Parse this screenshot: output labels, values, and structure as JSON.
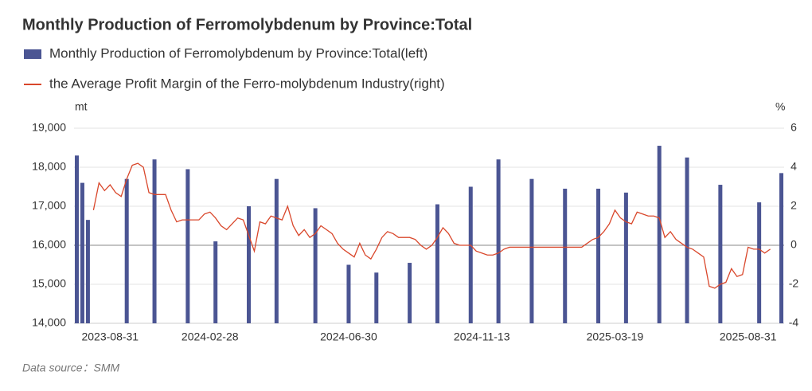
{
  "chart_data": {
    "type": "bar-line",
    "title": "Monthly Production of Ferromolybdenum by Province:Total",
    "ylabel": "mt",
    "y2label": "%",
    "source": "Data source：SMM",
    "legend": "top-left",
    "grid": true,
    "categories": [
      null,
      null,
      null,
      null,
      null,
      null,
      "2023-08-31",
      null,
      null,
      null,
      null,
      null,
      null,
      null,
      null,
      null,
      null,
      null,
      null,
      null,
      null,
      null,
      null,
      null,
      "2024-02-28",
      null,
      null,
      null,
      null,
      null,
      null,
      null,
      null,
      null,
      null,
      null,
      null,
      null,
      null,
      null,
      null,
      null,
      null,
      null,
      null,
      null,
      null,
      null,
      null,
      "2024-06-30",
      null,
      null,
      null,
      null,
      null,
      null,
      null,
      null,
      null,
      null,
      null,
      null,
      null,
      null,
      null,
      null,
      null,
      null,
      null,
      null,
      null,
      null,
      null,
      "2024-11-13",
      null,
      null,
      null,
      null,
      null,
      null,
      null,
      null,
      null,
      null,
      null,
      null,
      null,
      null,
      null,
      null,
      null,
      null,
      null,
      null,
      null,
      null,
      null,
      "2025-03-19",
      null,
      null,
      null,
      null,
      null,
      null,
      null,
      null,
      null,
      null,
      null,
      null,
      null,
      null,
      null,
      null,
      null,
      null,
      null,
      null,
      null,
      null,
      null,
      "2025-08-31",
      null,
      null,
      null,
      null,
      null,
      null
    ],
    "series": [
      {
        "name": "Monthly Production of Ferromolybdenum by Province:Total(left)",
        "kind": "bar",
        "color": "#4b5593",
        "values": [
          18300,
          17600,
          16650,
          null,
          null,
          null,
          null,
          null,
          null,
          17700,
          null,
          null,
          null,
          null,
          18200,
          null,
          null,
          null,
          null,
          null,
          17950,
          null,
          null,
          null,
          null,
          16100,
          null,
          null,
          null,
          null,
          null,
          17000,
          null,
          null,
          null,
          null,
          17700,
          null,
          null,
          null,
          null,
          null,
          null,
          16950,
          null,
          null,
          null,
          null,
          null,
          15500,
          null,
          null,
          null,
          null,
          15300,
          null,
          null,
          null,
          null,
          null,
          15550,
          null,
          null,
          null,
          null,
          17050,
          null,
          null,
          null,
          null,
          null,
          17500,
          null,
          null,
          null,
          null,
          18200,
          null,
          null,
          null,
          null,
          null,
          17700,
          null,
          null,
          null,
          null,
          null,
          17450,
          null,
          null,
          null,
          null,
          null,
          17450,
          null,
          null,
          null,
          null,
          17350,
          null,
          null,
          null,
          null,
          null,
          18550,
          null,
          null,
          null,
          null,
          18250,
          null,
          null,
          null,
          null,
          null,
          17550,
          null,
          null,
          null,
          null,
          null,
          null,
          17100,
          null,
          null,
          null,
          17850
        ]
      },
      {
        "name": "the Average Profit Margin of the Ferro-molybdenum Industry(right)",
        "kind": "line",
        "axis": "y2",
        "color": "#d9472b",
        "values": [
          null,
          null,
          null,
          1.8,
          3.2,
          2.8,
          3.1,
          2.7,
          2.5,
          3.4,
          4.1,
          4.2,
          4.0,
          2.7,
          2.6,
          2.6,
          2.6,
          1.8,
          1.2,
          1.3,
          1.3,
          1.3,
          1.3,
          1.6,
          1.7,
          1.4,
          1.0,
          0.8,
          1.1,
          1.4,
          1.3,
          0.5,
          -0.3,
          1.2,
          1.1,
          1.5,
          1.4,
          1.3,
          2.0,
          1.0,
          0.5,
          0.8,
          0.4,
          0.6,
          1.0,
          0.8,
          0.6,
          0.1,
          -0.2,
          -0.4,
          -0.6,
          0.1,
          -0.5,
          -0.7,
          -0.2,
          0.4,
          0.7,
          0.6,
          0.4,
          0.4,
          0.4,
          0.3,
          0.0,
          -0.2,
          0.0,
          0.4,
          0.9,
          0.6,
          0.1,
          0.0,
          0.0,
          0.0,
          -0.3,
          -0.4,
          -0.5,
          -0.5,
          -0.4,
          -0.2,
          -0.1,
          -0.1,
          -0.1,
          -0.1,
          -0.1,
          -0.1,
          -0.1,
          -0.1,
          -0.1,
          -0.1,
          -0.1,
          -0.1,
          -0.1,
          -0.1,
          0.1,
          0.3,
          0.4,
          0.7,
          1.1,
          1.8,
          1.4,
          1.2,
          1.1,
          1.7,
          1.6,
          1.5,
          1.5,
          1.4,
          0.4,
          0.7,
          0.3,
          0.1,
          -0.1,
          -0.2,
          -0.4,
          -0.6,
          -2.1,
          -2.2,
          -2.0,
          -1.9,
          -1.2,
          -1.6,
          -1.5,
          -0.1,
          -0.2,
          -0.2,
          -0.4,
          -0.2,
          null,
          null
        ]
      }
    ],
    "ylim": [
      14000,
      19000
    ],
    "yticks": [
      {
        "value": 14000,
        "label": "14,000"
      },
      {
        "value": 15000,
        "label": "15,000"
      },
      {
        "value": 16000,
        "label": "16,000"
      },
      {
        "value": 17000,
        "label": "17,000"
      },
      {
        "value": 18000,
        "label": "18,000"
      },
      {
        "value": 19000,
        "label": "19,000"
      }
    ],
    "y2lim": [
      -4,
      6
    ],
    "y2ticks": [
      -4,
      -2,
      0,
      2,
      4,
      6
    ]
  }
}
